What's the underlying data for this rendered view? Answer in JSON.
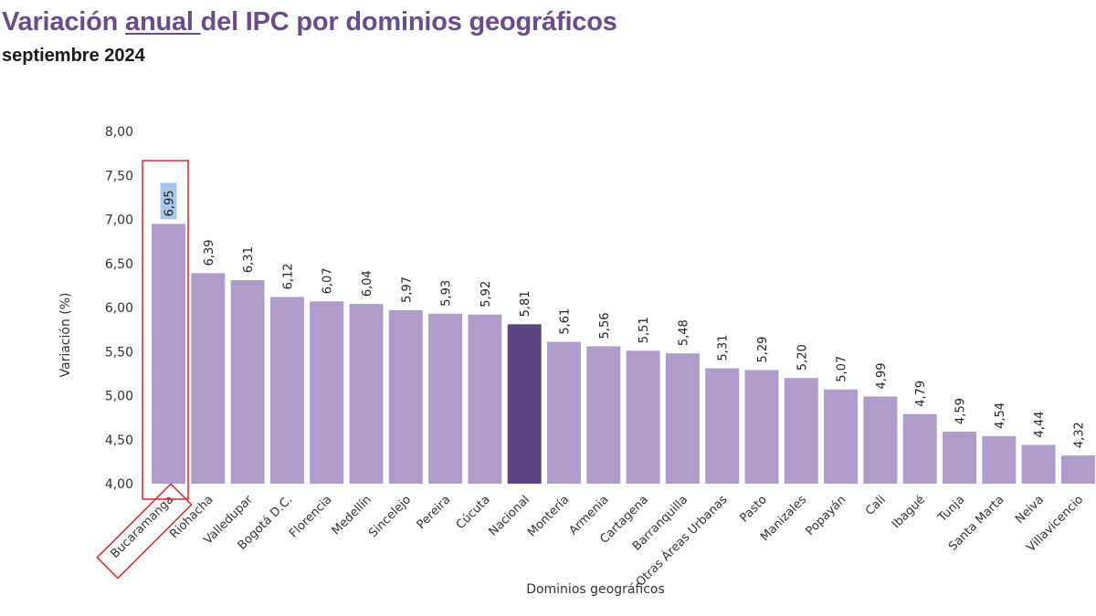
{
  "header": {
    "title_part1": "Variación ",
    "title_underlined": "anual ",
    "title_part2": "del IPC por dominios geográficos",
    "subtitle": "septiembre 2024"
  },
  "colors": {
    "title": "#6a4c8c",
    "bar": "#b09ccb",
    "bar_highlight": "#5d4680",
    "annotation_box": "#d62828",
    "label_highlight_bg": "#a9c8e8"
  },
  "chart_data": {
    "type": "bar",
    "title": "Variación anual del IPC por dominios geográficos",
    "subtitle": "septiembre 2024",
    "xlabel": "Dominios geográficos",
    "ylabel": "Variación (%)",
    "ylim": [
      4.0,
      8.0
    ],
    "yticks": [
      "4,00",
      "4,50",
      "5,00",
      "5,50",
      "6,00",
      "6,50",
      "7,00",
      "7,50",
      "8,00"
    ],
    "grid": false,
    "categories": [
      "Bucaramanga",
      "Riohacha",
      "Valledupar",
      "Bogotá D.C.",
      "Florencia",
      "Medellín",
      "Sincelejo",
      "Pereira",
      "Cúcuta",
      "Nacional",
      "Montería",
      "Armenia",
      "Cartagena",
      "Barranquilla",
      "Otras Áreas Urbanas",
      "Pasto",
      "Manizales",
      "Popayán",
      "Cali",
      "Ibagué",
      "Tunja",
      "Santa Marta",
      "Neiva",
      "Villavicencio"
    ],
    "values": [
      6.95,
      6.39,
      6.31,
      6.12,
      6.07,
      6.04,
      5.97,
      5.93,
      5.92,
      5.81,
      5.61,
      5.56,
      5.51,
      5.48,
      5.31,
      5.29,
      5.2,
      5.07,
      4.99,
      4.79,
      4.59,
      4.54,
      4.44,
      4.32
    ],
    "value_labels": [
      "6,95",
      "6,39",
      "6,31",
      "6,12",
      "6,07",
      "6,04",
      "5,97",
      "5,93",
      "5,92",
      "5,81",
      "5,61",
      "5,56",
      "5,51",
      "5,48",
      "5,31",
      "5,29",
      "5,20",
      "5,07",
      "4,99",
      "4,79",
      "4,59",
      "4,54",
      "4,44",
      "4,32"
    ],
    "highlight_category": "Nacional",
    "boxed_category": "Bucaramanga"
  }
}
